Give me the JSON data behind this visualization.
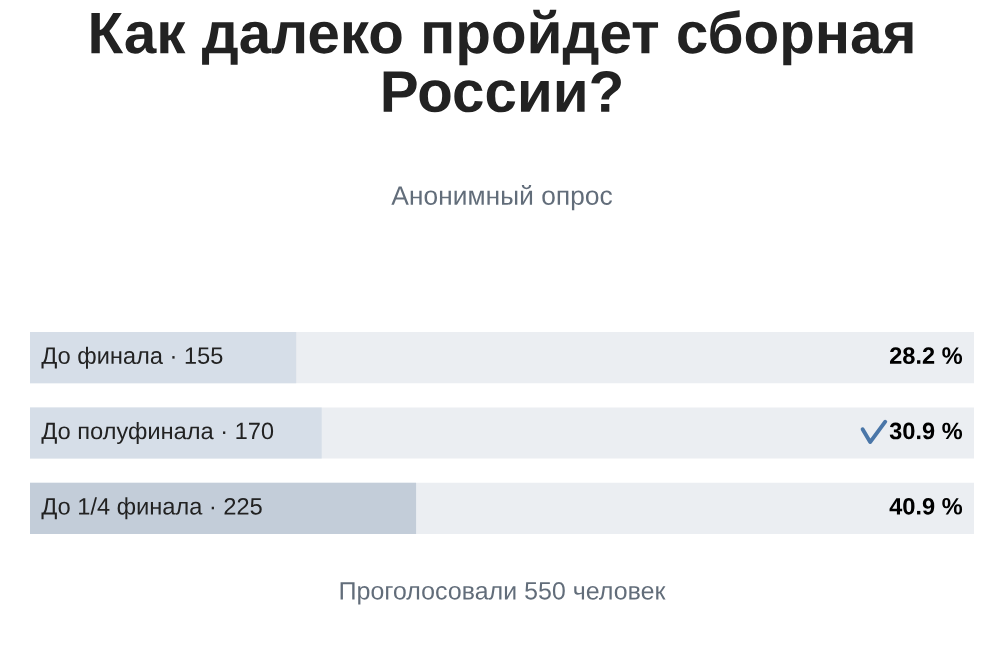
{
  "chart_data": {
    "type": "bar",
    "orientation": "horizontal",
    "title": "Как далеко пройдет сборная России?",
    "subtitle": "Анонимный опрос",
    "categories": [
      "До финала · 155",
      "До полуфинала · 170",
      "До 1/4 финала · 225"
    ],
    "series": [
      {
        "values": [
          28.2,
          30.9,
          40.9
        ],
        "colors": [
          "#d6dee8",
          "#d6dee8",
          "#c3cdd9"
        ],
        "value_labels": [
          "28.2 %",
          "30.9 %",
          "40.9 %"
        ]
      }
    ],
    "xlim": [
      0,
      100
    ],
    "annotations": [
      "Проголосовали 550 человек"
    ]
  }
}
